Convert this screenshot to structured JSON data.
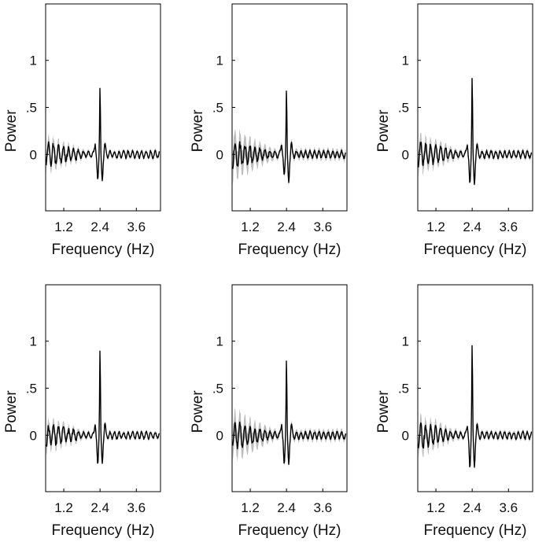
{
  "chart_data": [
    {
      "type": "line",
      "xlabel": "Frequency (Hz)",
      "ylabel": "Power",
      "xlim": [
        0.6,
        4.4
      ],
      "ylim": [
        -0.6,
        1.6
      ],
      "xticks": [
        1.2,
        2.4,
        3.6
      ],
      "xtick_labels": [
        "1.2",
        "2.4",
        "3.6"
      ],
      "yticks": [
        0,
        0.5,
        1
      ],
      "ytick_labels": [
        "0",
        ".5",
        "1"
      ],
      "series": [
        {
          "peak_x": 2.4,
          "peak_y": 0.73,
          "trough_left": -0.27,
          "trough_right": -0.28,
          "noise_amplitude": 0.12,
          "band": 0.05,
          "seed": 3
        }
      ]
    },
    {
      "type": "line",
      "xlabel": "Frequency (Hz)",
      "ylabel": "Power",
      "xlim": [
        0.6,
        4.4
      ],
      "ylim": [
        -0.6,
        1.6
      ],
      "xticks": [
        1.2,
        2.4,
        3.6
      ],
      "xtick_labels": [
        "1.2",
        "2.4",
        "3.6"
      ],
      "yticks": [
        0,
        0.5,
        1
      ],
      "ytick_labels": [
        "0",
        ".5",
        "1"
      ],
      "series": [
        {
          "peak_x": 2.4,
          "peak_y": 0.7,
          "trough_left": -0.22,
          "trough_right": -0.3,
          "noise_amplitude": 0.14,
          "band": 0.09,
          "seed": 11
        }
      ]
    },
    {
      "type": "line",
      "xlabel": "Frequency (Hz)",
      "ylabel": "Power",
      "xlim": [
        0.6,
        4.4
      ],
      "ylim": [
        -0.6,
        1.6
      ],
      "xticks": [
        1.2,
        2.4,
        3.6
      ],
      "xtick_labels": [
        "1.2",
        "2.4",
        "3.6"
      ],
      "yticks": [
        0,
        0.5,
        1
      ],
      "ytick_labels": [
        "0",
        ".5",
        "1"
      ],
      "series": [
        {
          "peak_x": 2.4,
          "peak_y": 0.84,
          "trough_left": -0.31,
          "trough_right": -0.32,
          "noise_amplitude": 0.13,
          "band": 0.06,
          "seed": 23
        }
      ]
    },
    {
      "type": "line",
      "xlabel": "Frequency (Hz)",
      "ylabel": "Power",
      "xlim": [
        0.6,
        4.4
      ],
      "ylim": [
        -0.6,
        1.6
      ],
      "xticks": [
        1.2,
        2.4,
        3.6
      ],
      "xtick_labels": [
        "1.2",
        "2.4",
        "3.6"
      ],
      "yticks": [
        0,
        0.5,
        1
      ],
      "ytick_labels": [
        "0",
        ".5",
        "1"
      ],
      "series": [
        {
          "peak_x": 2.4,
          "peak_y": 0.93,
          "trough_left": -0.31,
          "trough_right": -0.3,
          "noise_amplitude": 0.11,
          "band": 0.05,
          "seed": 37
        }
      ]
    },
    {
      "type": "line",
      "xlabel": "Frequency (Hz)",
      "ylabel": "Power",
      "xlim": [
        0.6,
        4.4
      ],
      "ylim": [
        -0.6,
        1.6
      ],
      "xticks": [
        1.2,
        2.4,
        3.6
      ],
      "xtick_labels": [
        "1.2",
        "2.4",
        "3.6"
      ],
      "yticks": [
        0,
        0.5,
        1
      ],
      "ytick_labels": [
        "0",
        ".5",
        "1"
      ],
      "series": [
        {
          "peak_x": 2.4,
          "peak_y": 0.82,
          "trough_left": -0.31,
          "trough_right": -0.31,
          "noise_amplitude": 0.14,
          "band": 0.09,
          "seed": 51
        }
      ]
    },
    {
      "type": "line",
      "xlabel": "Frequency (Hz)",
      "ylabel": "Power",
      "xlim": [
        0.6,
        4.4
      ],
      "ylim": [
        -0.6,
        1.6
      ],
      "xticks": [
        1.2,
        2.4,
        3.6
      ],
      "xtick_labels": [
        "1.2",
        "2.4",
        "3.6"
      ],
      "yticks": [
        0,
        0.5,
        1
      ],
      "ytick_labels": [
        "0",
        ".5",
        "1"
      ],
      "series": [
        {
          "peak_x": 2.4,
          "peak_y": 0.99,
          "trough_left": -0.35,
          "trough_right": -0.34,
          "noise_amplitude": 0.13,
          "band": 0.06,
          "seed": 67
        }
      ]
    }
  ]
}
